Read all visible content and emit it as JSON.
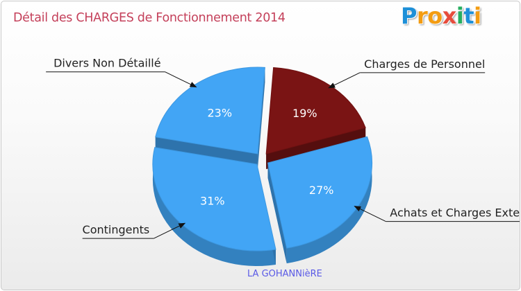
{
  "header": {
    "title": "Détail des CHARGES de Fonctionnement 2014"
  },
  "logo": {
    "text": "Proxiti",
    "colors": [
      "#1e90d8",
      "#f39c12",
      "#e74c3c",
      "#27ae60"
    ]
  },
  "chart_data": {
    "type": "pie",
    "title": "Détail des CHARGES de Fonctionnement 2014",
    "subtitle": "LA GOHANNièRE",
    "series": [
      {
        "name": "Charges de Personnel",
        "value": 19,
        "label": "19%",
        "color": "#7a1414"
      },
      {
        "name": "Achats et Charges Externes",
        "value": 27,
        "label": "27%",
        "color": "#42a5f5"
      },
      {
        "name": "Contingents",
        "value": 31,
        "label": "31%",
        "color": "#42a5f5"
      },
      {
        "name": "Divers Non Détaillé",
        "value": 23,
        "label": "23%",
        "color": "#42a5f5"
      }
    ]
  },
  "footer": {
    "city": "LA GOHANNièRE"
  }
}
